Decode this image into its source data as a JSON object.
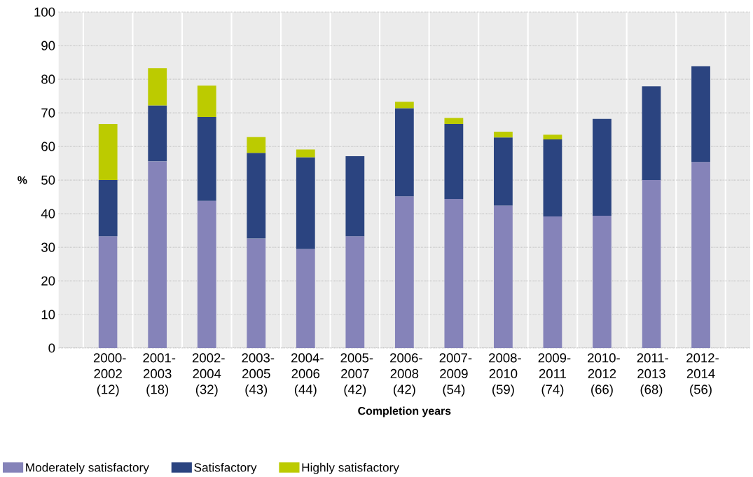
{
  "chart_data": {
    "type": "bar",
    "stacked": true,
    "ylabel": "%",
    "xlabel": "Completion years",
    "categories": [
      "2000-2002 (12)",
      "2001-2003 (18)",
      "2002-2004 (32)",
      "2003-2005 (43)",
      "2004-2006 (44)",
      "2005-2007 (42)",
      "2006-2008 (42)",
      "2007-2009 (54)",
      "2008-2010 (59)",
      "2009-2011 (74)",
      "2010-2012 (66)",
      "2011-2013 (68)",
      "2012-2014 (56)"
    ],
    "series": [
      {
        "name": "Moderately satisfactory",
        "color": "#8583b9",
        "values": [
          33.3,
          55.6,
          43.8,
          32.6,
          29.5,
          33.3,
          45.2,
          44.4,
          42.4,
          39.2,
          39.4,
          50.0,
          55.4
        ]
      },
      {
        "name": "Satisfactory",
        "color": "#2b4480",
        "values": [
          16.7,
          16.6,
          25.0,
          25.5,
          27.3,
          23.8,
          26.2,
          22.3,
          20.3,
          22.9,
          28.8,
          27.9,
          28.5
        ]
      },
      {
        "name": "Highly satisfactory",
        "color": "#bccb00",
        "values": [
          16.7,
          11.1,
          9.3,
          4.7,
          2.3,
          null,
          1.9,
          1.8,
          1.7,
          1.4,
          null,
          null,
          null
        ]
      }
    ],
    "ylim": [
      0,
      100
    ],
    "yticks": [
      0,
      10,
      20,
      30,
      40,
      50,
      60,
      70,
      80,
      90,
      100
    ],
    "grid": true,
    "legend": "bottom left"
  }
}
